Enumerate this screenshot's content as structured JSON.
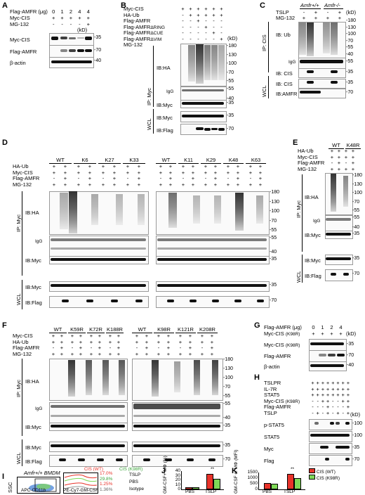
{
  "panels": {
    "A": {
      "label": "A",
      "rows": [
        "Flag-AMFR (μg)",
        "Myc-CIS",
        "MG-132"
      ],
      "row_values": [
        [
          "0",
          "1",
          "2",
          "4",
          "4"
        ],
        [
          "+",
          "+",
          "+",
          "+",
          "+"
        ],
        [
          "-",
          "-",
          "-",
          "-",
          "+"
        ]
      ],
      "kd": "(kD)",
      "blots": [
        {
          "label": "Myc-CIS",
          "marker": "-35"
        },
        {
          "label": "Flag-AMFR",
          "marker": "-70"
        },
        {
          "label": "β-actin",
          "marker": "-40"
        }
      ]
    },
    "B": {
      "label": "B",
      "rows": [
        "Myc-CIS",
        "HA-Ub",
        "Flag-AMFR",
        "Flag-AMFR",
        "Flag-AMFR",
        "Flag-AMFR",
        "MG-132"
      ],
      "row_suffix": [
        "",
        "",
        "",
        "ΔRING",
        "ΔCUE",
        "ΔVIM",
        ""
      ],
      "kd": "(kD)",
      "ip_label": "IP: Myc",
      "wcl_label": "WCL",
      "blots": [
        {
          "label": "IB:HA",
          "markers": [
            "-180",
            "-130",
            "-100",
            "-70",
            "-55"
          ]
        },
        {
          "label": "IgG",
          "markers": [
            "-55",
            "-40"
          ]
        },
        {
          "label": "IB:Myc",
          "markers": [
            "-35"
          ]
        },
        {
          "label": "IB:Myc",
          "markers": [
            "-35"
          ]
        },
        {
          "label": "IB:Flag",
          "markers": [
            "-70"
          ]
        }
      ]
    },
    "C": {
      "label": "C",
      "genotype_wt": "Amfr+/+",
      "genotype_ko": "Amfr-/-",
      "rows": [
        "TSLP",
        "MG-132"
      ],
      "kd": "(kD)",
      "ip_label": "IP: CIS",
      "wcl_label": "WCL",
      "blots": [
        {
          "label": "IB: Ub",
          "markers": [
            "-180",
            "-130",
            "-100",
            "-70",
            "-55",
            "-40"
          ]
        },
        {
          "label": "IgG",
          "markers": [
            "-55"
          ]
        },
        {
          "label": "IB: CIS",
          "markers": [
            "-35"
          ]
        },
        {
          "label": "IB: CIS",
          "markers": [
            "-35"
          ]
        },
        {
          "label": "IB:AMFR",
          "markers": [
            "-70"
          ]
        }
      ]
    },
    "D": {
      "label": "D",
      "rows": [
        "HA-Ub",
        "Myc-CIS",
        "Flag-AMFR",
        "MG-132"
      ],
      "groups_left": [
        "WT",
        "K6",
        "K27",
        "K33"
      ],
      "groups_right": [
        "WT",
        "K11",
        "K29",
        "K48",
        "K63"
      ],
      "ip_label": "IP: Myc",
      "wcl_label": "WCL",
      "blots": [
        {
          "label": "IB:HA",
          "markers": [
            "-180",
            "-130",
            "-100",
            "-70",
            "-55"
          ]
        },
        {
          "label": "IgG",
          "markers": [
            "-55",
            "-40"
          ]
        },
        {
          "label": "IB:Myc",
          "markers": [
            "-35"
          ]
        },
        {
          "label": "IB:Myc",
          "markers": [
            "-35"
          ]
        },
        {
          "label": "IB:Flag",
          "markers": [
            "-70"
          ]
        }
      ]
    },
    "E": {
      "label": "E",
      "rows": [
        "HA-Ub",
        "Myc-CIS",
        "Flag-AMFR",
        "MG-132"
      ],
      "groups": [
        "WT",
        "K48R"
      ],
      "ip_label": "IP: Myc",
      "wcl_label": "WCL",
      "blots": [
        {
          "label": "IB:HA",
          "markers": [
            "-180",
            "-130",
            "-100",
            "-70",
            "-55"
          ]
        },
        {
          "label": "IgG",
          "markers": [
            "-55",
            "-40"
          ]
        },
        {
          "label": "IB:Myc",
          "markers": [
            "-35"
          ]
        },
        {
          "label": "IB:Myc",
          "markers": [
            "-35"
          ]
        },
        {
          "label": "IB:Flag",
          "markers": [
            "-70"
          ]
        }
      ]
    },
    "F": {
      "label": "F",
      "rows": [
        "Myc-CIS",
        "HA-Ub",
        "Flag-AMFR",
        "MG-132"
      ],
      "groups_left": [
        "WT",
        "K59R",
        "K72R",
        "K188R"
      ],
      "groups_right": [
        "WT",
        "K98R",
        "K121R",
        "K208R"
      ],
      "ip_label": "IP: Myc",
      "wcl_label": "WCL",
      "blots": [
        {
          "label": "IB:HA",
          "markers": [
            "-180",
            "-130",
            "-100",
            "-70",
            "-55"
          ]
        },
        {
          "label": "IgG",
          "markers": [
            "-55",
            "-40"
          ]
        },
        {
          "label": "IB:Myc",
          "markers": [
            "-35"
          ]
        },
        {
          "label": "IB:Myc",
          "markers": [
            "-35"
          ]
        },
        {
          "label": "IB:Flag",
          "markers": [
            "-70"
          ]
        }
      ]
    },
    "G": {
      "label": "G",
      "rows": [
        "Flag-AMFR (μg)",
        "Myc-CIS"
      ],
      "row_suffix": [
        "",
        "(K98R)"
      ],
      "values": [
        "0",
        "1",
        "2",
        "4"
      ],
      "kd": "(kD)",
      "blots": [
        {
          "label": "Myc-CIS",
          "suffix": "(K98R)",
          "marker": "-35"
        },
        {
          "label": "Flag-AMFR",
          "suffix": "",
          "marker": "-70"
        },
        {
          "label": "β-actin",
          "suffix": "",
          "marker": "-40"
        }
      ]
    },
    "H": {
      "label": "H",
      "rows": [
        "TSLPR",
        "IL-7R",
        "STAT5",
        "Myc-CIS",
        "Flag-AMFR",
        "TSLP"
      ],
      "row_suffix": [
        "",
        "",
        "",
        "(K98R)",
        "",
        ""
      ],
      "kd": "(kD)",
      "blots": [
        {
          "label": "p-STAT5",
          "marker": "-100"
        },
        {
          "label": "STAT5",
          "marker": "-100"
        },
        {
          "label": "Myc",
          "marker": "-35"
        },
        {
          "label": "Flag",
          "marker": "-70"
        }
      ]
    },
    "I": {
      "label": "I",
      "title": "Amfr+/+ BMDM",
      "ylabel": "SSC",
      "xlabel": "APC-CD11b",
      "hist_xlabel": "PE-Cy7-GM-CSF",
      "legend": [
        "CIS (WT)",
        "CIS (K98R)"
      ],
      "percents": [
        "17.0%",
        "29.8%",
        "1.25%",
        "1.36%"
      ],
      "side_labels": [
        "TSLP",
        "PBS",
        "Isotype"
      ],
      "colors": {
        "wt": "#e8332a",
        "k98r": "#7ed957",
        "iso": "#999999"
      }
    }
  },
  "chart_data": [
    {
      "panel": "J",
      "type": "bar",
      "ylabel": "GM-CSF+ MΦ (%)",
      "categories": [
        "PBS",
        "TSLP"
      ],
      "ylim": [
        0,
        40
      ],
      "yticks": [
        "0",
        "10",
        "20",
        "30",
        "40"
      ],
      "series": [
        {
          "name": "CIS (WT)",
          "color": "#e8332a",
          "values": [
            1.4,
            31
          ]
        },
        {
          "name": "CIS (K98R)",
          "color": "#7ed957",
          "values": [
            1.2,
            20
          ]
        }
      ],
      "annotations": [
        "**"
      ]
    },
    {
      "panel": "K",
      "type": "bar",
      "ylabel": "GM-CSF of MΦ (MFI)",
      "categories": [
        "PBS",
        "TSLP"
      ],
      "ylim": [
        0,
        1500
      ],
      "yticks": [
        "0",
        "500",
        "1000",
        "1500"
      ],
      "series": [
        {
          "name": "CIS (WT)",
          "color": "#e8332a",
          "values": [
            410,
            1230
          ]
        },
        {
          "name": "CIS (K98R)",
          "color": "#7ed957",
          "values": [
            400,
            880
          ]
        }
      ],
      "legend": [
        "CIS (WT)",
        "CIS (K98R)"
      ],
      "annotations": [
        "**"
      ]
    }
  ]
}
